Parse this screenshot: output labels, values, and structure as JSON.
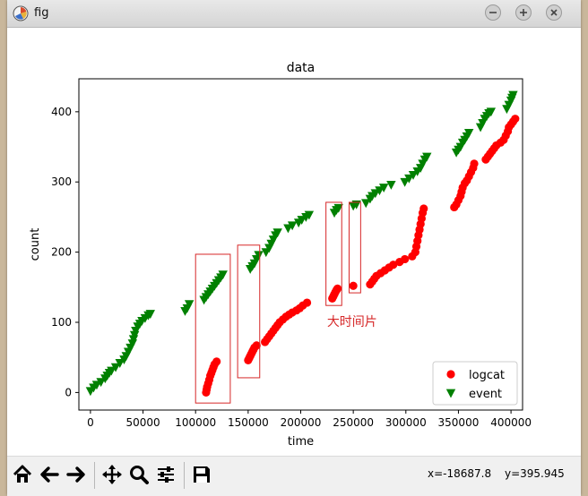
{
  "window": {
    "title": "fig"
  },
  "toolbar": {
    "coord_x": "x=-18687.8",
    "coord_y": "y=395.945",
    "buttons": [
      "home-icon",
      "back-icon",
      "forward-icon",
      "pan-icon",
      "zoom-icon",
      "configure-subplots-icon",
      "save-icon"
    ]
  },
  "colors": {
    "logcat": "#ff0000",
    "event": "#008000",
    "annotation": "#d62728"
  },
  "chart_data": {
    "type": "scatter",
    "title": "data",
    "xlabel": "time",
    "ylabel": "count",
    "xlim": [
      -11000,
      411000
    ],
    "ylim": [
      -25,
      447
    ],
    "xticks": [
      0,
      50000,
      100000,
      150000,
      200000,
      250000,
      300000,
      350000,
      400000
    ],
    "yticks": [
      0,
      100,
      200,
      300,
      400
    ],
    "legend": "bottom-right",
    "series": [
      {
        "name": "logcat",
        "marker": "circle",
        "points": [
          [
            110000,
            0
          ],
          [
            110500,
            4
          ],
          [
            111000,
            8
          ],
          [
            112000,
            13
          ],
          [
            113000,
            18
          ],
          [
            114000,
            24
          ],
          [
            115000,
            28
          ],
          [
            116000,
            32
          ],
          [
            117000,
            36
          ],
          [
            118000,
            40
          ],
          [
            120000,
            44
          ],
          [
            150000,
            46
          ],
          [
            151000,
            49
          ],
          [
            152000,
            52
          ],
          [
            153000,
            55
          ],
          [
            154000,
            58
          ],
          [
            155000,
            61
          ],
          [
            156000,
            64
          ],
          [
            158000,
            67
          ],
          [
            166000,
            72
          ],
          [
            168000,
            76
          ],
          [
            170000,
            80
          ],
          [
            172000,
            84
          ],
          [
            174000,
            88
          ],
          [
            176000,
            92
          ],
          [
            178000,
            96
          ],
          [
            180000,
            100
          ],
          [
            183000,
            104
          ],
          [
            186000,
            108
          ],
          [
            189000,
            111
          ],
          [
            192000,
            114
          ],
          [
            196000,
            117
          ],
          [
            199000,
            120
          ],
          [
            202000,
            124
          ],
          [
            206000,
            128
          ],
          [
            230000,
            134
          ],
          [
            231000,
            137
          ],
          [
            232000,
            140
          ],
          [
            233000,
            143
          ],
          [
            234000,
            146
          ],
          [
            235000,
            148
          ],
          [
            250000,
            152
          ],
          [
            266000,
            154
          ],
          [
            268000,
            158
          ],
          [
            270000,
            162
          ],
          [
            272000,
            166
          ],
          [
            276000,
            170
          ],
          [
            280000,
            174
          ],
          [
            284000,
            178
          ],
          [
            288000,
            182
          ],
          [
            294000,
            186
          ],
          [
            299000,
            190
          ],
          [
            306000,
            194
          ],
          [
            309000,
            200
          ],
          [
            310000,
            208
          ],
          [
            311000,
            216
          ],
          [
            312000,
            224
          ],
          [
            313000,
            232
          ],
          [
            314000,
            240
          ],
          [
            315000,
            248
          ],
          [
            316000,
            256
          ],
          [
            317000,
            262
          ],
          [
            346000,
            264
          ],
          [
            348000,
            268
          ],
          [
            350000,
            274
          ],
          [
            352000,
            280
          ],
          [
            353000,
            286
          ],
          [
            354000,
            292
          ],
          [
            356000,
            298
          ],
          [
            358000,
            302
          ],
          [
            360000,
            308
          ],
          [
            362000,
            314
          ],
          [
            364000,
            320
          ],
          [
            365000,
            326
          ],
          [
            376000,
            332
          ],
          [
            378000,
            336
          ],
          [
            380000,
            340
          ],
          [
            382000,
            344
          ],
          [
            384000,
            348
          ],
          [
            386000,
            352
          ],
          [
            390000,
            356
          ],
          [
            393000,
            360
          ],
          [
            395000,
            366
          ],
          [
            397000,
            372
          ],
          [
            398000,
            378
          ],
          [
            400000,
            382
          ],
          [
            402000,
            386
          ],
          [
            404000,
            390
          ]
        ]
      },
      {
        "name": "event",
        "marker": "triangle_down",
        "points": [
          [
            0,
            2
          ],
          [
            3000,
            7
          ],
          [
            6000,
            11
          ],
          [
            10000,
            15
          ],
          [
            14000,
            20
          ],
          [
            16000,
            24
          ],
          [
            18000,
            28
          ],
          [
            20000,
            31
          ],
          [
            24000,
            36
          ],
          [
            28000,
            42
          ],
          [
            32000,
            47
          ],
          [
            34000,
            52
          ],
          [
            36000,
            58
          ],
          [
            38000,
            64
          ],
          [
            40000,
            70
          ],
          [
            41000,
            76
          ],
          [
            42000,
            82
          ],
          [
            43000,
            88
          ],
          [
            45000,
            94
          ],
          [
            47000,
            98
          ],
          [
            49000,
            102
          ],
          [
            52000,
            106
          ],
          [
            55000,
            110
          ],
          [
            57000,
            112
          ],
          [
            90000,
            116
          ],
          [
            92000,
            120
          ],
          [
            94000,
            126
          ],
          [
            108000,
            132
          ],
          [
            110000,
            136
          ],
          [
            112000,
            140
          ],
          [
            114000,
            144
          ],
          [
            116000,
            148
          ],
          [
            118000,
            152
          ],
          [
            120000,
            156
          ],
          [
            122000,
            160
          ],
          [
            124000,
            164
          ],
          [
            126000,
            168
          ],
          [
            152000,
            176
          ],
          [
            154000,
            180
          ],
          [
            156000,
            184
          ],
          [
            158000,
            190
          ],
          [
            160000,
            196
          ],
          [
            167000,
            200
          ],
          [
            170000,
            206
          ],
          [
            172000,
            212
          ],
          [
            174000,
            218
          ],
          [
            176000,
            224
          ],
          [
            178000,
            228
          ],
          [
            188000,
            234
          ],
          [
            192000,
            238
          ],
          [
            198000,
            242
          ],
          [
            201000,
            246
          ],
          [
            205000,
            250
          ],
          [
            208000,
            253
          ],
          [
            232000,
            256
          ],
          [
            234000,
            260
          ],
          [
            236000,
            263
          ],
          [
            250000,
            266
          ],
          [
            253000,
            268
          ],
          [
            262000,
            270
          ],
          [
            266000,
            276
          ],
          [
            268000,
            280
          ],
          [
            271000,
            284
          ],
          [
            275000,
            288
          ],
          [
            279000,
            292
          ],
          [
            286000,
            296
          ],
          [
            299000,
            300
          ],
          [
            303000,
            305
          ],
          [
            307000,
            310
          ],
          [
            311000,
            315
          ],
          [
            314000,
            320
          ],
          [
            316000,
            326
          ],
          [
            318000,
            332
          ],
          [
            320000,
            336
          ],
          [
            348000,
            342
          ],
          [
            350000,
            346
          ],
          [
            352000,
            350
          ],
          [
            354000,
            356
          ],
          [
            356000,
            360
          ],
          [
            358000,
            365
          ],
          [
            360000,
            370
          ],
          [
            371000,
            378
          ],
          [
            373000,
            384
          ],
          [
            375000,
            390
          ],
          [
            377000,
            394
          ],
          [
            379000,
            398
          ],
          [
            381000,
            400
          ],
          [
            396000,
            404
          ],
          [
            398000,
            410
          ],
          [
            400000,
            416
          ],
          [
            401000,
            420
          ],
          [
            402000,
            424
          ]
        ]
      }
    ],
    "annotation_boxes": [
      {
        "x0": 100000,
        "x1": 133000,
        "y0": -15,
        "y1": 197
      },
      {
        "x0": 140000,
        "x1": 161000,
        "y0": 21,
        "y1": 210
      },
      {
        "x0": 224000,
        "x1": 239000,
        "y0": 124,
        "y1": 271
      },
      {
        "x0": 246000,
        "x1": 257000,
        "y0": 142,
        "y1": 271
      }
    ],
    "annotation_text": {
      "label": "大时间片",
      "x": 225000,
      "y": 95
    }
  }
}
